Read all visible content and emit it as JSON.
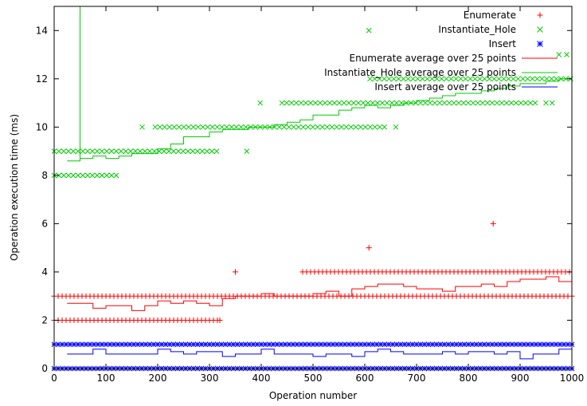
{
  "chart_data": {
    "type": "scatter",
    "title": "",
    "xlabel": "Operation number",
    "ylabel": "Operation execution time (ms)",
    "xlim": [
      0,
      1000
    ],
    "ylim": [
      0,
      15
    ],
    "x_ticks": [
      0,
      100,
      200,
      300,
      400,
      500,
      600,
      700,
      800,
      900,
      1000
    ],
    "y_ticks": [
      0,
      2,
      4,
      6,
      8,
      10,
      12,
      14
    ],
    "grid": false,
    "legend_position": "top-right",
    "series": [
      {
        "name": "Enumerate",
        "kind": "points",
        "marker": "plus",
        "color": "#ff0000",
        "bands": [
          {
            "y": 2,
            "from": 0,
            "to": 320
          },
          {
            "y": 3,
            "from": 0,
            "to": 1000
          },
          {
            "y": 4,
            "from": 480,
            "to": 1000
          }
        ],
        "outliers": [
          {
            "x": 320,
            "y": 2
          },
          {
            "x": 350,
            "y": 4
          },
          {
            "x": 608,
            "y": 5
          },
          {
            "x": 848,
            "y": 6
          }
        ]
      },
      {
        "name": "Instantiate_Hole",
        "kind": "points",
        "marker": "cross",
        "color": "#00cc00",
        "bands": [
          {
            "y": 8,
            "from": 0,
            "to": 120
          },
          {
            "y": 9,
            "from": 0,
            "to": 320
          },
          {
            "y": 10,
            "from": 195,
            "to": 640
          },
          {
            "y": 11,
            "from": 440,
            "to": 930
          },
          {
            "y": 12,
            "from": 610,
            "to": 1000
          }
        ],
        "outliers": [
          {
            "x": 170,
            "y": 10
          },
          {
            "x": 372,
            "y": 9
          },
          {
            "x": 398,
            "y": 11
          },
          {
            "x": 608,
            "y": 14
          },
          {
            "x": 660,
            "y": 10
          },
          {
            "x": 950,
            "y": 11
          },
          {
            "x": 962,
            "y": 11
          },
          {
            "x": 975,
            "y": 13
          },
          {
            "x": 990,
            "y": 13
          }
        ]
      },
      {
        "name": "Insert",
        "kind": "points",
        "marker": "star",
        "color": "#0000ff",
        "bands": [
          {
            "y": 0,
            "from": 0,
            "to": 1000
          },
          {
            "y": 1,
            "from": 0,
            "to": 1000
          }
        ],
        "outliers": []
      },
      {
        "name": "Enumerate average over 25 points",
        "kind": "step",
        "color": "#ff0000",
        "x": [
          25,
          50,
          75,
          100,
          125,
          150,
          175,
          200,
          225,
          250,
          275,
          300,
          325,
          350,
          375,
          400,
          425,
          450,
          475,
          500,
          525,
          550,
          575,
          600,
          625,
          650,
          675,
          700,
          725,
          750,
          775,
          800,
          825,
          850,
          875,
          900,
          925,
          950,
          975,
          1000
        ],
        "values": [
          2.7,
          2.7,
          2.5,
          2.6,
          2.6,
          2.4,
          2.6,
          2.8,
          2.7,
          2.8,
          2.7,
          2.6,
          2.9,
          3.0,
          3.0,
          3.1,
          3.0,
          3.0,
          3.0,
          3.1,
          3.2,
          3.0,
          3.3,
          3.4,
          3.5,
          3.5,
          3.4,
          3.3,
          3.3,
          3.2,
          3.4,
          3.4,
          3.5,
          3.4,
          3.6,
          3.7,
          3.7,
          3.8,
          3.6,
          3.6
        ]
      },
      {
        "name": "Instantiate_Hole average over 25 points",
        "kind": "step",
        "color": "#00cc00",
        "spike": {
          "x": 50,
          "y": 15
        },
        "x": [
          25,
          50,
          75,
          100,
          125,
          150,
          175,
          200,
          225,
          250,
          275,
          300,
          325,
          350,
          375,
          400,
          425,
          450,
          475,
          500,
          525,
          550,
          575,
          600,
          625,
          650,
          675,
          700,
          725,
          750,
          775,
          800,
          825,
          850,
          875,
          900,
          925,
          950,
          975,
          1000
        ],
        "values": [
          8.6,
          8.7,
          8.8,
          8.7,
          8.8,
          8.9,
          8.9,
          9.1,
          9.3,
          9.6,
          9.6,
          9.8,
          9.9,
          9.9,
          10.0,
          10.0,
          10.1,
          10.2,
          10.3,
          10.5,
          10.5,
          10.7,
          10.8,
          10.9,
          10.8,
          10.9,
          11.0,
          11.1,
          11.2,
          11.3,
          11.4,
          11.4,
          11.5,
          11.6,
          11.7,
          11.8,
          11.8,
          11.9,
          12.0,
          12.0
        ]
      },
      {
        "name": "Insert average over 25 points",
        "kind": "step",
        "color": "#0000ff",
        "x": [
          25,
          50,
          75,
          100,
          125,
          150,
          175,
          200,
          225,
          250,
          275,
          300,
          325,
          350,
          375,
          400,
          425,
          450,
          475,
          500,
          525,
          550,
          575,
          600,
          625,
          650,
          675,
          700,
          725,
          750,
          775,
          800,
          825,
          850,
          875,
          900,
          925,
          950,
          975,
          1000
        ],
        "values": [
          0.6,
          0.6,
          0.8,
          0.6,
          0.6,
          0.6,
          0.6,
          0.8,
          0.7,
          0.6,
          0.7,
          0.7,
          0.5,
          0.6,
          0.6,
          0.8,
          0.6,
          0.6,
          0.6,
          0.5,
          0.6,
          0.6,
          0.5,
          0.7,
          0.8,
          0.7,
          0.6,
          0.6,
          0.6,
          0.7,
          0.6,
          0.7,
          0.7,
          0.6,
          0.7,
          0.4,
          0.6,
          0.6,
          0.8,
          0.6
        ]
      }
    ]
  }
}
